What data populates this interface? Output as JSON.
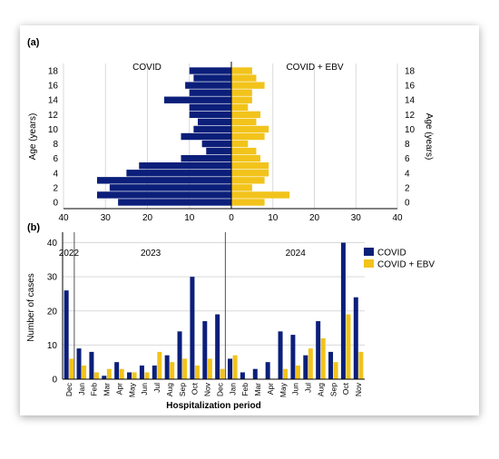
{
  "panel_a": {
    "label": "(a)"
  },
  "panel_b": {
    "label": "(b)"
  },
  "colors": {
    "covid": "#0b1f7a",
    "covid_ebv": "#f2c31b",
    "grid": "#d9d9d9",
    "axis": "#000000"
  },
  "chart_data": [
    {
      "id": "a",
      "type": "bar",
      "orientation": "horizontal-butterfly",
      "left_title": "COVID",
      "right_title": "COVID + EBV",
      "ylabel_left": "Age (years)",
      "ylabel_right": "Age (years)",
      "ages": [
        0,
        1,
        2,
        3,
        4,
        5,
        6,
        7,
        8,
        9,
        10,
        11,
        12,
        13,
        14,
        15,
        16,
        17,
        18
      ],
      "yticks": [
        0,
        2,
        4,
        6,
        8,
        10,
        12,
        14,
        16,
        18
      ],
      "xticks": [
        40,
        30,
        20,
        10,
        0,
        10,
        20,
        30,
        40
      ],
      "xlim": [
        0,
        40
      ],
      "grid": true,
      "series": [
        {
          "name": "COVID",
          "side": "left",
          "values": [
            27,
            32,
            29,
            32,
            25,
            22,
            12,
            6,
            7,
            12,
            9,
            8,
            10,
            10,
            16,
            10,
            11,
            9,
            10
          ]
        },
        {
          "name": "COVID + EBV",
          "side": "right",
          "values": [
            8,
            14,
            5,
            8,
            9,
            9,
            7,
            6,
            4,
            8,
            9,
            6,
            7,
            4,
            5,
            5,
            8,
            6,
            5
          ]
        }
      ]
    },
    {
      "id": "b",
      "type": "bar",
      "ylabel": "Number of cases",
      "xlabel": "Hospitalization period",
      "ylim": [
        0,
        42
      ],
      "yticks": [
        0,
        10,
        20,
        30,
        40
      ],
      "grid": true,
      "legend": "top-right",
      "years": [
        "2022",
        "2023",
        "2024"
      ],
      "categories": [
        "Dec",
        "Jan",
        "Feb",
        "Mar",
        "Apr",
        "May",
        "Jun",
        "Jul",
        "Aug",
        "Sep",
        "Oct",
        "Nov",
        "Dec",
        "Jan",
        "Feb",
        "Mar",
        "Apr",
        "May",
        "Jun",
        "Jul",
        "Aug",
        "Sep",
        "Oct",
        "Nov"
      ],
      "series": [
        {
          "name": "COVID",
          "values": [
            26,
            9,
            8,
            1,
            5,
            2,
            4,
            4,
            7,
            14,
            30,
            17,
            19,
            6,
            2,
            3,
            5,
            14,
            13,
            7,
            17,
            8,
            40,
            24
          ]
        },
        {
          "name": "COVID + EBV",
          "values": [
            6,
            4,
            2,
            3,
            3,
            2,
            2,
            8,
            5,
            6,
            4,
            6,
            3,
            7,
            0,
            0,
            0,
            3,
            4,
            9,
            12,
            5,
            19,
            8
          ]
        }
      ]
    }
  ]
}
